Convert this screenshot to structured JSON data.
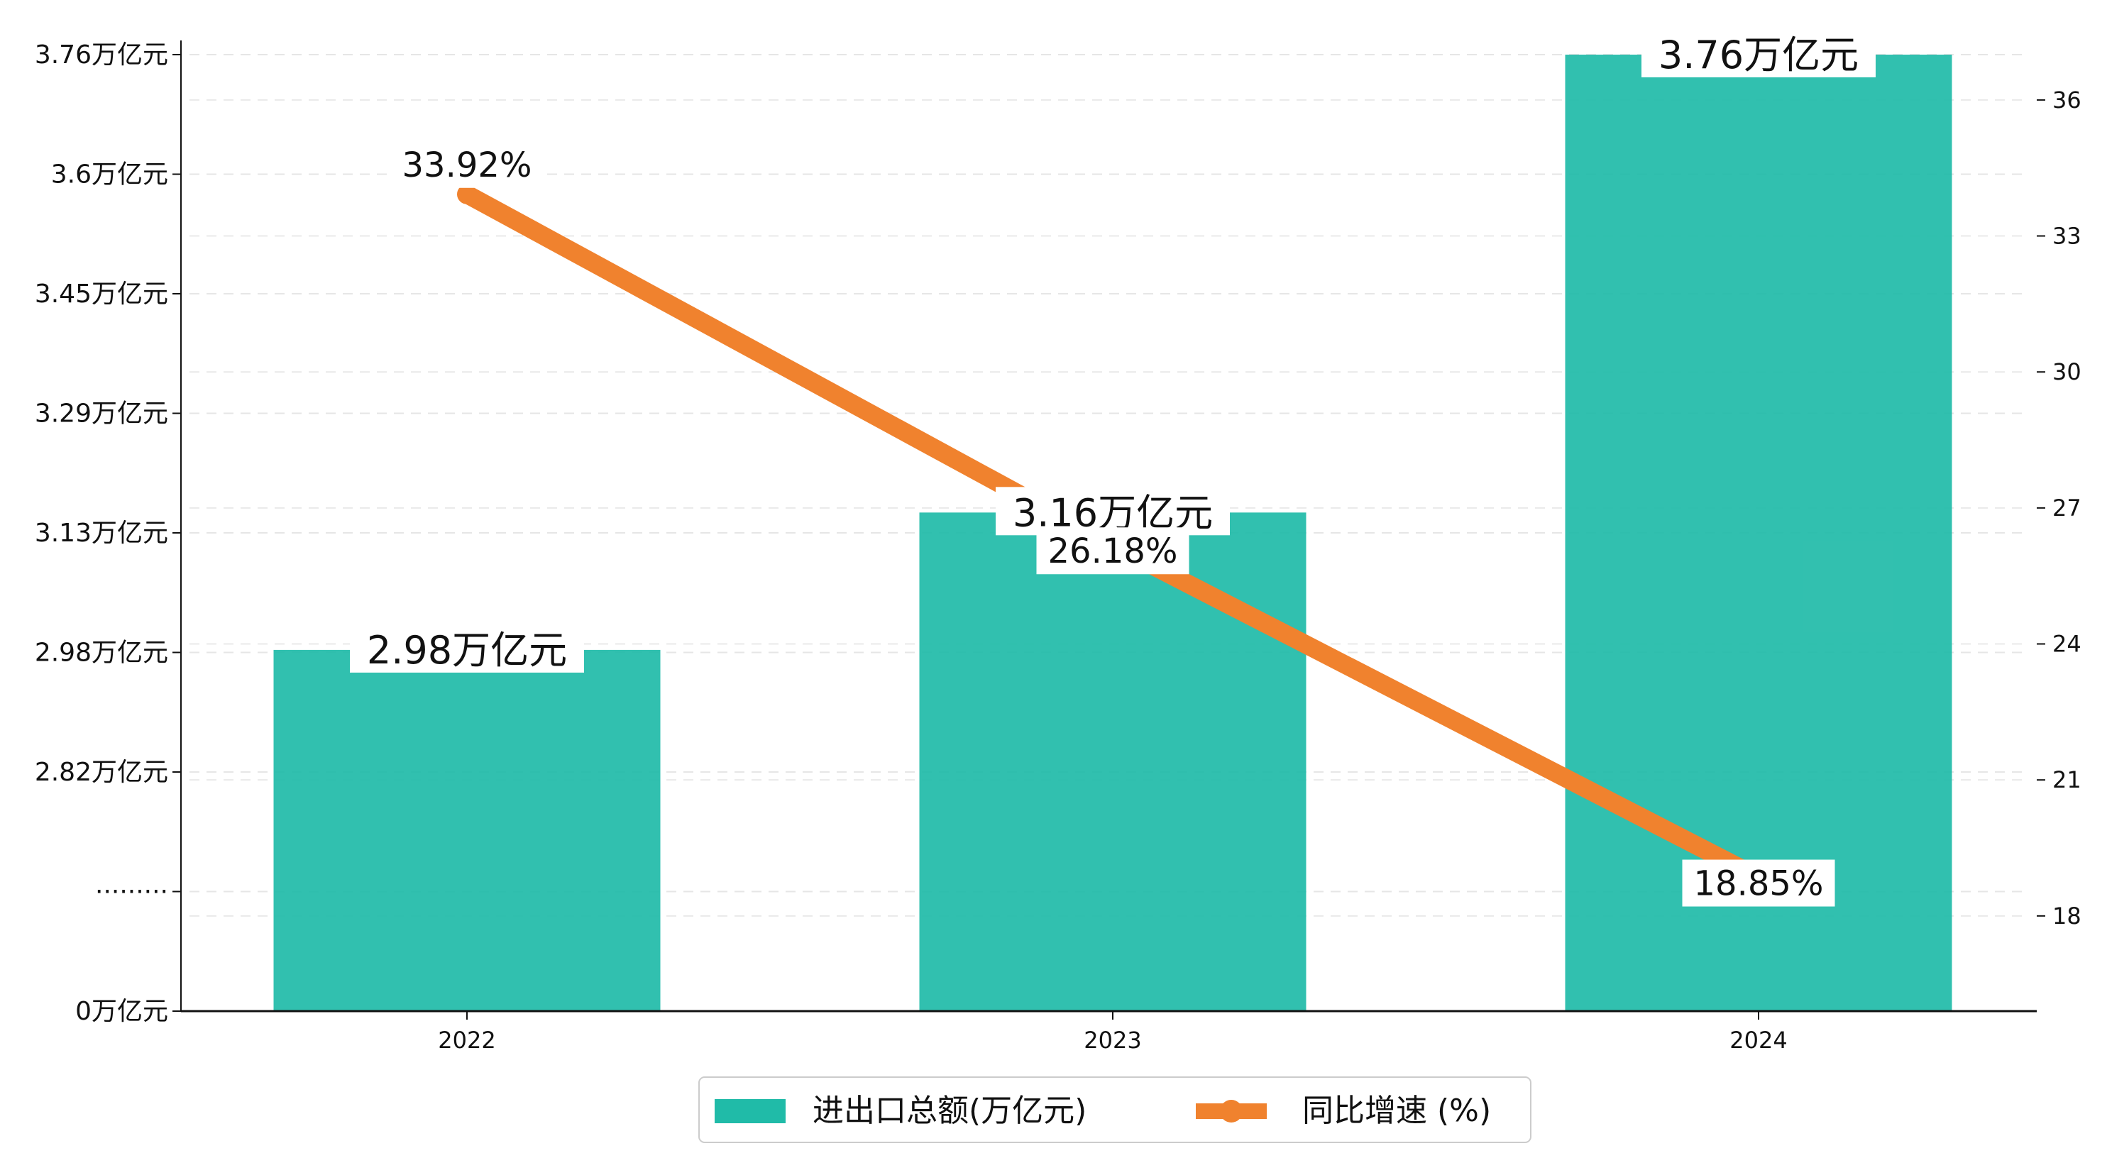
{
  "chart_data": {
    "type": "bar",
    "categories": [
      "2022",
      "2023",
      "2024"
    ],
    "series": [
      {
        "name": "进出口总额(万亿元)",
        "type": "bar",
        "axis": "left",
        "values": [
          2.98,
          3.16,
          3.76
        ],
        "labels": [
          "2.98万亿元",
          "3.16万亿元",
          "3.76万亿元"
        ],
        "color": "#20bba8"
      },
      {
        "name": "同比增速 (%)",
        "type": "line",
        "axis": "right",
        "values": [
          33.92,
          26.18,
          18.85
        ],
        "labels": [
          "33.92%",
          "26.18%",
          "18.85%"
        ],
        "color": "#f0822e"
      }
    ],
    "y_axis_left": {
      "ticks": [
        {
          "label": "0万亿元",
          "slot": 0
        },
        {
          "label": "·········",
          "slot": 1
        },
        {
          "label": "2.82万亿元",
          "slot": 2,
          "value": 2.82
        },
        {
          "label": "2.98万亿元",
          "slot": 3,
          "value": 2.98
        },
        {
          "label": "3.13万亿元",
          "slot": 4,
          "value": 3.13
        },
        {
          "label": "3.29万亿元",
          "slot": 5,
          "value": 3.29
        },
        {
          "label": "3.45万亿元",
          "slot": 6,
          "value": 3.45
        },
        {
          "label": "3.6万亿元",
          "slot": 7,
          "value": 3.6
        },
        {
          "label": "3.76万亿元",
          "slot": 8,
          "value": 3.76
        }
      ],
      "broken": true
    },
    "y_axis_right": {
      "ticks": [
        18,
        21,
        24,
        27,
        30,
        33,
        36
      ],
      "ylim": [
        15.9,
        37
      ]
    },
    "grid": true,
    "legend_position": "bottom"
  }
}
